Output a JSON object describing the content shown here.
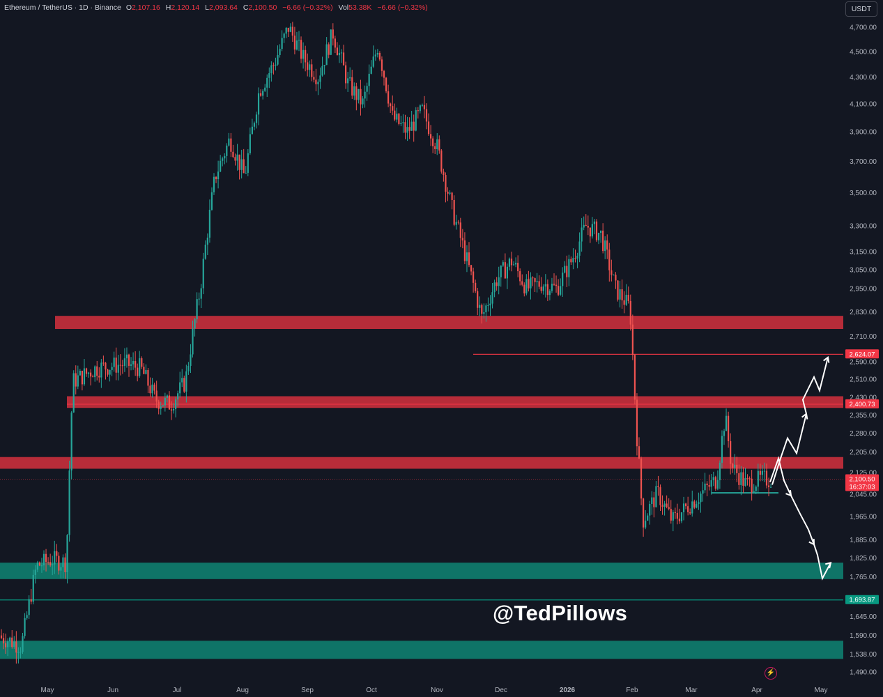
{
  "legend": {
    "symbol": "Ethereum / TetherUS · 1D · Binance",
    "open_label": "O",
    "open": "2,107.16",
    "high_label": "H",
    "high": "2,120.14",
    "low_label": "L",
    "low": "2,093.64",
    "close_label": "C",
    "close": "2,100.50",
    "change": "−6.66 (−0.32%)",
    "vol_label": "Vol",
    "volume": "53.38K",
    "vol_change": "−6.66 (−0.32%)"
  },
  "currency_button": "USDT",
  "watermark": "@TedPillows",
  "colors": {
    "background": "#131722",
    "up": "#26a69a",
    "down": "#ef5350",
    "resistance_zone": "#c62f3c",
    "support_zone": "#0f7d6e",
    "arrow": "#ffffff"
  },
  "icons": {
    "replay": "lightning-bolt-icon"
  },
  "chart_data": {
    "type": "candlestick",
    "scale": "log",
    "ylim": [
      1450,
      4900
    ],
    "y_ticks": [
      {
        "value": 4700,
        "label": "4,700.00"
      },
      {
        "value": 4500,
        "label": "4,500.00"
      },
      {
        "value": 4300,
        "label": "4,300.00"
      },
      {
        "value": 4100,
        "label": "4,100.00"
      },
      {
        "value": 3900,
        "label": "3,900.00"
      },
      {
        "value": 3700,
        "label": "3,700.00"
      },
      {
        "value": 3500,
        "label": "3,500.00"
      },
      {
        "value": 3300,
        "label": "3,300.00"
      },
      {
        "value": 3150,
        "label": "3,150.00"
      },
      {
        "value": 3050,
        "label": "3,050.00"
      },
      {
        "value": 2950,
        "label": "2,950.00"
      },
      {
        "value": 2830,
        "label": "2,830.00"
      },
      {
        "value": 2710,
        "label": "2,710.00"
      },
      {
        "value": 2590,
        "label": "2,590.00"
      },
      {
        "value": 2510,
        "label": "2,510.00"
      },
      {
        "value": 2430,
        "label": "2,430.00"
      },
      {
        "value": 2355,
        "label": "2,355.00"
      },
      {
        "value": 2280,
        "label": "2,280.00"
      },
      {
        "value": 2205,
        "label": "2,205.00"
      },
      {
        "value": 2125,
        "label": "2,125.00"
      },
      {
        "value": 2045,
        "label": "2,045.00"
      },
      {
        "value": 1965,
        "label": "1,965.00"
      },
      {
        "value": 1885,
        "label": "1,885.00"
      },
      {
        "value": 1825,
        "label": "1,825.00"
      },
      {
        "value": 1765,
        "label": "1,765.00"
      },
      {
        "value": 1645,
        "label": "1,645.00"
      },
      {
        "value": 1590,
        "label": "1,590.00"
      },
      {
        "value": 1538,
        "label": "1,538.00"
      },
      {
        "value": 1490,
        "label": "1,490.00"
      }
    ],
    "x_ticks": [
      "May",
      "Jun",
      "Jul",
      "Aug",
      "Sep",
      "Oct",
      "Nov",
      "Dec",
      "2026",
      "Feb",
      "Mar",
      "Apr",
      "May"
    ],
    "price_labels": [
      {
        "value": 2624.07,
        "label": "2,624.07",
        "color": "#f23645"
      },
      {
        "value": 2400.73,
        "label": "2,400.73",
        "color": "#f23645"
      },
      {
        "value": 2100.5,
        "label": "2,100.50",
        "sub": "16:37:03",
        "color": "#f23645"
      },
      {
        "value": 1693.87,
        "label": "1,693.87",
        "color": "#089981"
      }
    ],
    "zones": [
      {
        "kind": "resistance",
        "low": 2745,
        "high": 2810
      },
      {
        "kind": "resistance",
        "low": 2385,
        "high": 2435
      },
      {
        "kind": "resistance",
        "low": 2140,
        "high": 2185
      },
      {
        "kind": "support",
        "low": 1758,
        "high": 1810
      },
      {
        "kind": "support",
        "low": 1525,
        "high": 1575
      }
    ],
    "levels": [
      {
        "value": 2624.07,
        "color": "#f23645"
      },
      {
        "value": 2400.73,
        "color": "#f23645"
      },
      {
        "value": 1693.87,
        "color": "#089981"
      },
      {
        "value": 2050,
        "color": "#26a69a"
      }
    ],
    "series": [
      {
        "x": "Apr 05",
        "y": 1590
      },
      {
        "x": "Apr 12",
        "y": 1580
      },
      {
        "x": "Apr 19",
        "y": 1560
      },
      {
        "x": "Apr 26",
        "y": 1800
      },
      {
        "x": "May 03",
        "y": 1820
      },
      {
        "x": "May 10",
        "y": 1810
      },
      {
        "x": "May 13",
        "y": 2500
      },
      {
        "x": "May 24",
        "y": 2560
      },
      {
        "x": "Jun 07",
        "y": 2580
      },
      {
        "x": "Jun 14",
        "y": 2560
      },
      {
        "x": "Jun 21",
        "y": 2420
      },
      {
        "x": "Jun 28",
        "y": 2400
      },
      {
        "x": "Jul 05",
        "y": 2500
      },
      {
        "x": "Jul 12",
        "y": 2950
      },
      {
        "x": "Jul 19",
        "y": 3600
      },
      {
        "x": "Jul 26",
        "y": 3850
      },
      {
        "x": "Aug 02",
        "y": 3600
      },
      {
        "x": "Aug 09",
        "y": 4200
      },
      {
        "x": "Aug 16",
        "y": 4400
      },
      {
        "x": "Aug 23",
        "y": 4700
      },
      {
        "x": "Aug 30",
        "y": 4450
      },
      {
        "x": "Sep 06",
        "y": 4300
      },
      {
        "x": "Sep 13",
        "y": 4650
      },
      {
        "x": "Sep 20",
        "y": 4250
      },
      {
        "x": "Sep 27",
        "y": 4100
      },
      {
        "x": "Oct 04",
        "y": 4550
      },
      {
        "x": "Oct 11",
        "y": 4000
      },
      {
        "x": "Oct 18",
        "y": 3900
      },
      {
        "x": "Oct 25",
        "y": 4050
      },
      {
        "x": "Nov 01",
        "y": 3800
      },
      {
        "x": "Nov 08",
        "y": 3400
      },
      {
        "x": "Nov 15",
        "y": 3100
      },
      {
        "x": "Nov 22",
        "y": 2800
      },
      {
        "x": "Nov 29",
        "y": 3000
      },
      {
        "x": "Dec 06",
        "y": 3100
      },
      {
        "x": "Dec 13",
        "y": 2950
      },
      {
        "x": "Dec 20",
        "y": 2980
      },
      {
        "x": "Dec 27",
        "y": 2950
      },
      {
        "x": "Jan 03",
        "y": 3100
      },
      {
        "x": "Jan 10",
        "y": 3300
      },
      {
        "x": "Jan 17",
        "y": 3250
      },
      {
        "x": "Jan 24",
        "y": 2950
      },
      {
        "x": "Jan 31",
        "y": 2850
      },
      {
        "x": "Feb 03",
        "y": 2300
      },
      {
        "x": "Feb 06",
        "y": 1950
      },
      {
        "x": "Feb 13",
        "y": 2050
      },
      {
        "x": "Feb 20",
        "y": 1950
      },
      {
        "x": "Feb 27",
        "y": 2000
      },
      {
        "x": "Mar 06",
        "y": 2050
      },
      {
        "x": "Mar 13",
        "y": 2100
      },
      {
        "x": "Mar 17",
        "y": 2350
      },
      {
        "x": "Mar 20",
        "y": 2150
      },
      {
        "x": "Mar 27",
        "y": 2080
      },
      {
        "x": "Apr 03",
        "y": 2100
      }
    ],
    "scenario_up": [
      2080,
      2180,
      2260,
      2200,
      2360,
      2420,
      2520,
      2460,
      2610
    ],
    "scenario_down": [
      2100,
      2150,
      2090,
      2060,
      1990,
      1920,
      1850,
      1810,
      1760,
      1800
    ]
  }
}
